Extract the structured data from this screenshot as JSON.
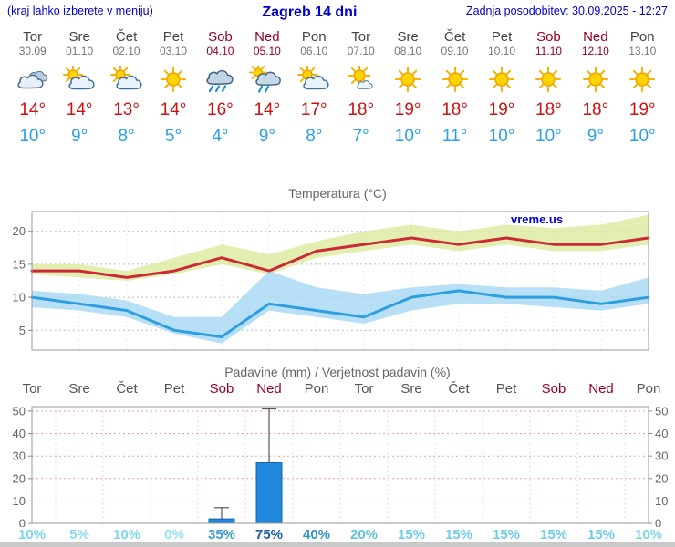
{
  "header": {
    "note": "(kraj lahko izberete v meniju)",
    "title": "Zagreb 14 dni",
    "updated": "Zadnja posodobitev: 30.09.2025 - 12:27"
  },
  "watermark": "vreme.us",
  "colors": {
    "header_text": "#0000cc",
    "temp_max_text": "#cc1111",
    "temp_min_text": "#2aa0e8",
    "weekend_text": "#990022",
    "weekday_text": "#444444",
    "max_line": "#cc2936",
    "max_band": "#dcea9e",
    "min_line": "#2d9fe0",
    "min_band": "#a5d8f5",
    "bar_fill": "#2288dd"
  },
  "days": [
    {
      "name": "Tor",
      "date": "30.09",
      "weekend": false,
      "icon": "cloudy",
      "tmax": "14°",
      "tmin": "10°"
    },
    {
      "name": "Sre",
      "date": "01.10",
      "weekend": false,
      "icon": "partly-cloudy",
      "tmax": "14°",
      "tmin": "9°"
    },
    {
      "name": "Čet",
      "date": "02.10",
      "weekend": false,
      "icon": "partly-cloudy",
      "tmax": "13°",
      "tmin": "8°"
    },
    {
      "name": "Pet",
      "date": "03.10",
      "weekend": false,
      "icon": "sunny",
      "tmax": "14°",
      "tmin": "5°"
    },
    {
      "name": "Sob",
      "date": "04.10",
      "weekend": true,
      "icon": "rain",
      "tmax": "16°",
      "tmin": "4°"
    },
    {
      "name": "Ned",
      "date": "05.10",
      "weekend": true,
      "icon": "rain-sun",
      "tmax": "14°",
      "tmin": "9°"
    },
    {
      "name": "Pon",
      "date": "06.10",
      "weekend": false,
      "icon": "partly-cloudy",
      "tmax": "17°",
      "tmin": "8°"
    },
    {
      "name": "Tor",
      "date": "07.10",
      "weekend": false,
      "icon": "mostly-sunny",
      "tmax": "18°",
      "tmin": "7°"
    },
    {
      "name": "Sre",
      "date": "08.10",
      "weekend": false,
      "icon": "sunny",
      "tmax": "19°",
      "tmin": "10°"
    },
    {
      "name": "Čet",
      "date": "09.10",
      "weekend": false,
      "icon": "sunny",
      "tmax": "18°",
      "tmin": "11°"
    },
    {
      "name": "Pet",
      "date": "10.10",
      "weekend": false,
      "icon": "sunny",
      "tmax": "19°",
      "tmin": "10°"
    },
    {
      "name": "Sob",
      "date": "11.10",
      "weekend": true,
      "icon": "sunny",
      "tmax": "18°",
      "tmin": "10°"
    },
    {
      "name": "Ned",
      "date": "12.10",
      "weekend": true,
      "icon": "sunny",
      "tmax": "18°",
      "tmin": "9°"
    },
    {
      "name": "Pon",
      "date": "13.10",
      "weekend": false,
      "icon": "sunny",
      "tmax": "19°",
      "tmin": "10°"
    }
  ],
  "chart_data": [
    {
      "type": "line",
      "title": "Temperatura (°C)",
      "x_labels": [
        "Tor",
        "Sre",
        "Čet",
        "Pet",
        "Sob",
        "Ned",
        "Pon",
        "Tor",
        "Sre",
        "Čet",
        "Pet",
        "Sob",
        "Ned",
        "Pon"
      ],
      "ylim": [
        2,
        23
      ],
      "yticks": [
        5,
        10,
        15,
        20
      ],
      "grid": true,
      "series": [
        {
          "name": "max temperature",
          "color": "#cc2936",
          "values": [
            14,
            14,
            13,
            14,
            16,
            14,
            17,
            18,
            19,
            18,
            19,
            18,
            18,
            19
          ],
          "band_upper": [
            15,
            15,
            14,
            16,
            18,
            16.5,
            18.5,
            20,
            21,
            20,
            21,
            20.5,
            21,
            22.5
          ],
          "band_lower": [
            13.5,
            13,
            12.5,
            13.5,
            15,
            13.5,
            16,
            17,
            18,
            17,
            18,
            17,
            17,
            18
          ],
          "band_color": "#dcea9e"
        },
        {
          "name": "min temperature",
          "color": "#2d9fe0",
          "values": [
            10,
            9,
            8,
            5,
            4,
            9,
            8,
            7,
            10,
            11,
            10,
            10,
            9,
            10
          ],
          "band_upper": [
            11,
            10.5,
            9.5,
            7,
            7,
            14,
            11.5,
            10.5,
            11.5,
            12,
            11.5,
            11.5,
            11,
            13
          ],
          "band_lower": [
            8.5,
            8,
            7,
            4.5,
            3,
            8,
            7,
            6,
            8,
            9,
            9,
            8.5,
            8,
            9
          ],
          "band_color": "#a5d8f5"
        }
      ]
    },
    {
      "type": "bar",
      "title": "Padavine (mm) / Verjetnost padavin (%)",
      "categories": [
        "Tor",
        "Sre",
        "Čet",
        "Pet",
        "Sob",
        "Ned",
        "Pon",
        "Tor",
        "Sre",
        "Čet",
        "Pet",
        "Sob",
        "Ned",
        "Pon"
      ],
      "weekend_flags": [
        false,
        false,
        false,
        false,
        true,
        true,
        false,
        false,
        false,
        false,
        false,
        true,
        true,
        false
      ],
      "values": [
        0,
        0,
        0,
        0,
        2,
        27,
        0,
        0,
        0,
        0,
        0,
        0,
        0,
        0
      ],
      "whisker_max": [
        0,
        0,
        0,
        0,
        7,
        51,
        0,
        0,
        0,
        0,
        0,
        0,
        0,
        0
      ],
      "bar_color": "#2288dd",
      "ylim": [
        0,
        52
      ],
      "yticks": [
        0,
        10,
        20,
        30,
        40,
        50
      ],
      "probabilities": [
        {
          "label": "10%",
          "color": "#7ed6ea"
        },
        {
          "label": "5%",
          "color": "#88dcee"
        },
        {
          "label": "10%",
          "color": "#7ed6ea"
        },
        {
          "label": "0%",
          "color": "#92e4f2"
        },
        {
          "label": "35%",
          "color": "#3f9ccd"
        },
        {
          "label": "75%",
          "color": "#1a5fa8"
        },
        {
          "label": "40%",
          "color": "#3795c8"
        },
        {
          "label": "20%",
          "color": "#60c2e0"
        },
        {
          "label": "15%",
          "color": "#70cce6"
        },
        {
          "label": "15%",
          "color": "#70cce6"
        },
        {
          "label": "15%",
          "color": "#70cce6"
        },
        {
          "label": "15%",
          "color": "#70cce6"
        },
        {
          "label": "15%",
          "color": "#70cce6"
        },
        {
          "label": "10%",
          "color": "#7ed6ea"
        }
      ]
    }
  ]
}
